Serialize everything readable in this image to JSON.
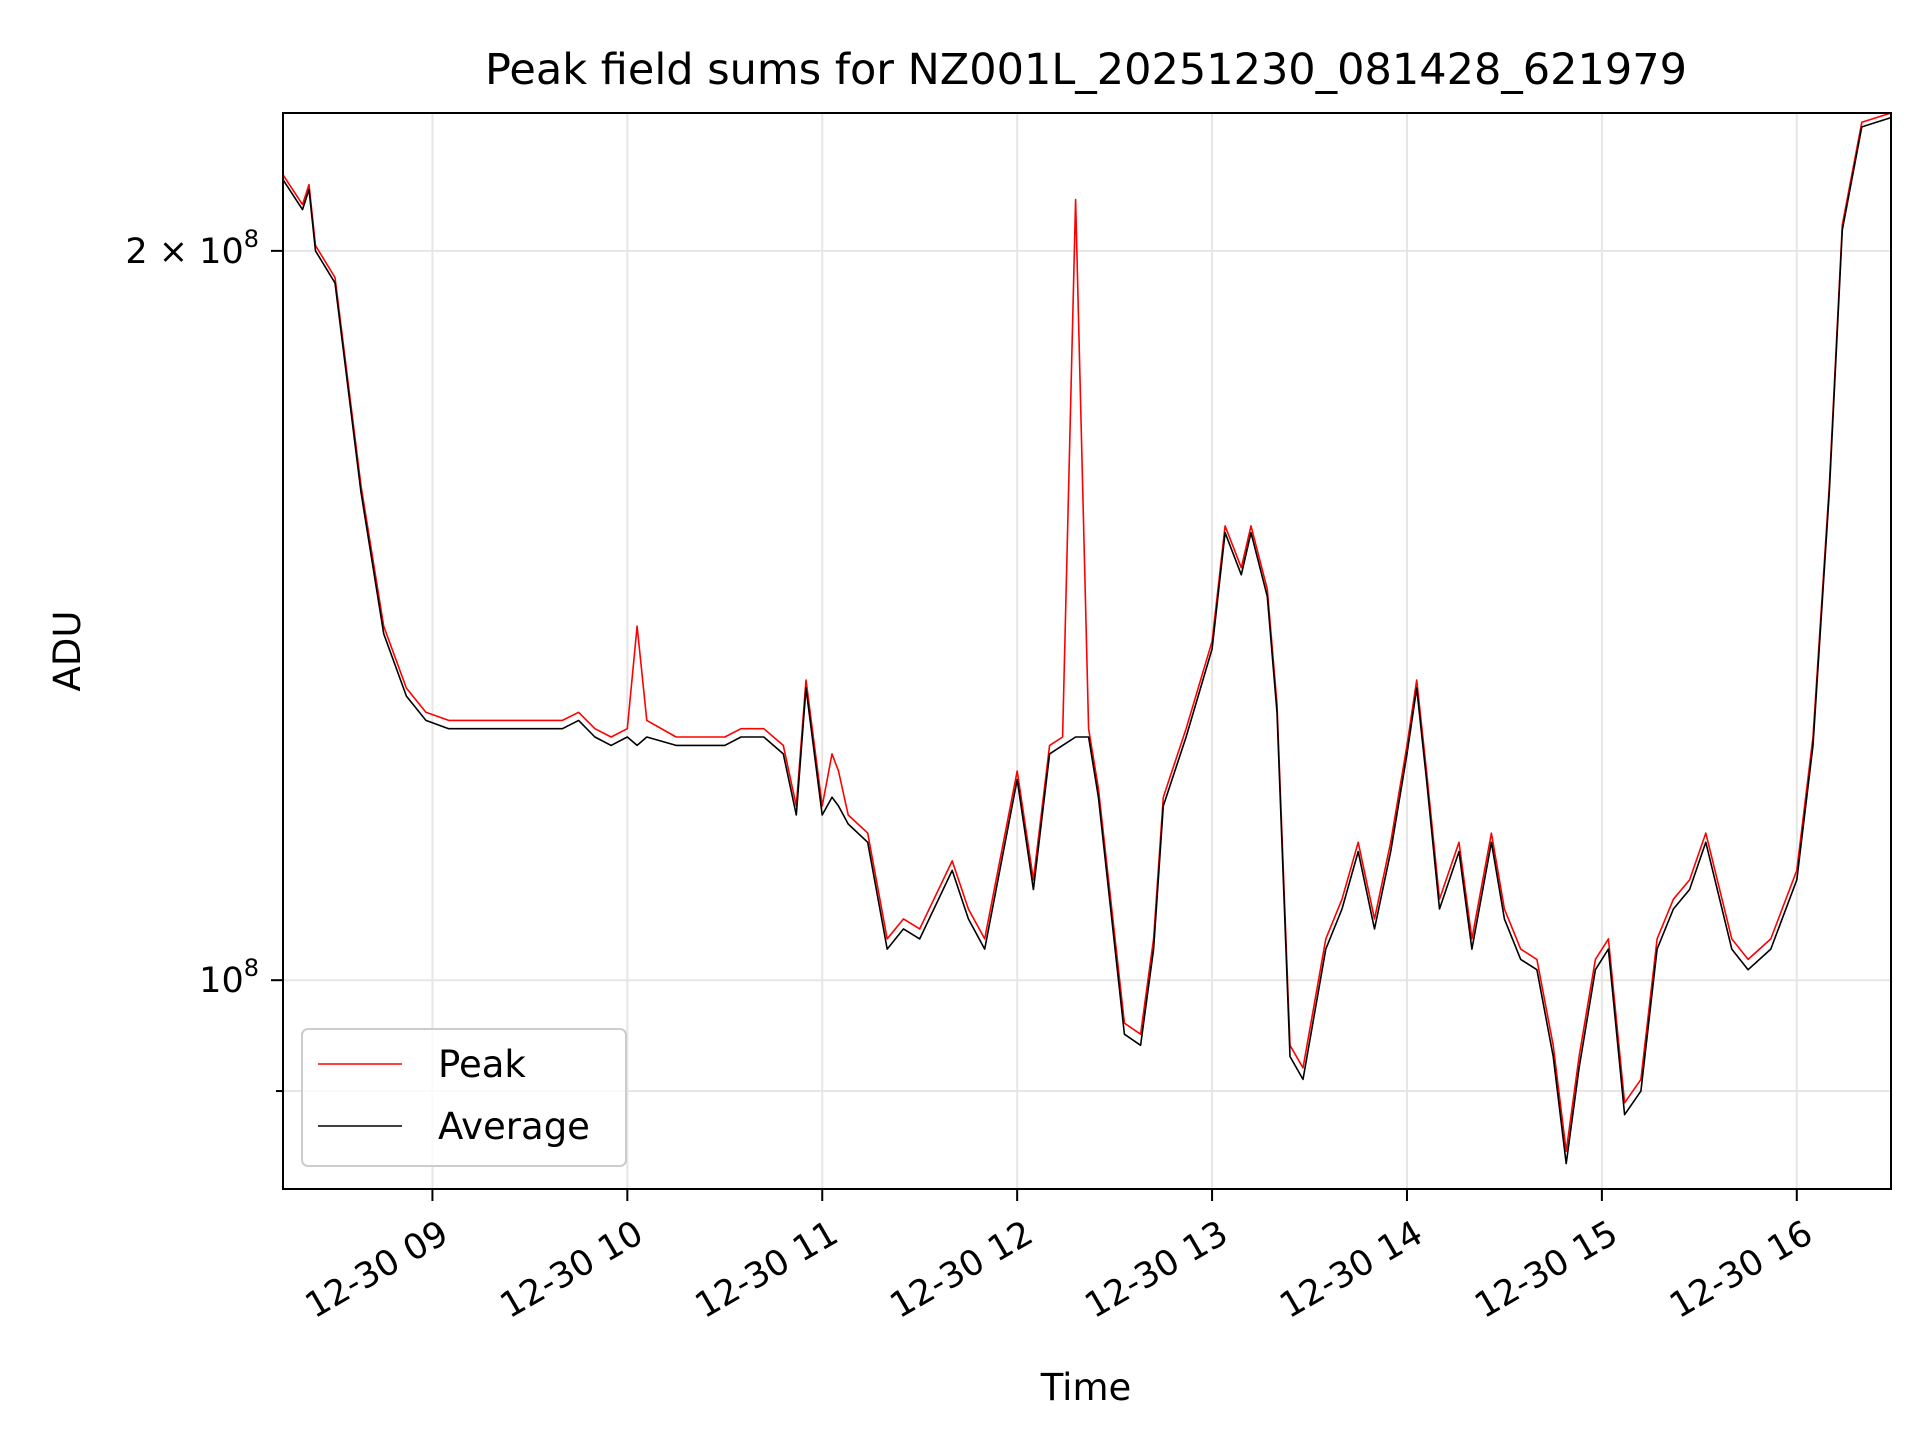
{
  "chart_data": {
    "type": "line",
    "title": "Peak field sums for NZ001L_20251230_081428_621979",
    "xlabel": "Time",
    "ylabel": "ADU",
    "yscale": "log",
    "ylim": [
      82000000,
      228000000
    ],
    "xlim": [
      "2025-12-30 08:14",
      "2025-12-30 16:29"
    ],
    "grid": true,
    "legend_position": "lower-left",
    "x_ticks": [
      {
        "t": "2025-12-30 09:00",
        "label": "12-30 09"
      },
      {
        "t": "2025-12-30 10:00",
        "label": "12-30 10"
      },
      {
        "t": "2025-12-30 11:00",
        "label": "12-30 11"
      },
      {
        "t": "2025-12-30 12:00",
        "label": "12-30 12"
      },
      {
        "t": "2025-12-30 13:00",
        "label": "12-30 13"
      },
      {
        "t": "2025-12-30 14:00",
        "label": "12-30 14"
      },
      {
        "t": "2025-12-30 15:00",
        "label": "12-30 15"
      },
      {
        "t": "2025-12-30 16:00",
        "label": "12-30 16"
      }
    ],
    "y_ticks": [
      {
        "value": 200000000,
        "label": "2 × 10",
        "exp": "8"
      },
      {
        "value": 100000000,
        "label": "10",
        "exp": "8"
      }
    ],
    "series": [
      {
        "name": "Peak",
        "color": "#ff0000",
        "x": [
          "2025-12-30 08:14",
          "2025-12-30 08:20",
          "2025-12-30 08:22",
          "2025-12-30 08:24",
          "2025-12-30 08:30",
          "2025-12-30 08:38",
          "2025-12-30 08:45",
          "2025-12-30 08:52",
          "2025-12-30 08:58",
          "2025-12-30 09:05",
          "2025-12-30 09:15",
          "2025-12-30 09:25",
          "2025-12-30 09:30",
          "2025-12-30 09:35",
          "2025-12-30 09:40",
          "2025-12-30 09:45",
          "2025-12-30 09:50",
          "2025-12-30 09:55",
          "2025-12-30 10:00",
          "2025-12-30 10:03",
          "2025-12-30 10:06",
          "2025-12-30 10:15",
          "2025-12-30 10:20",
          "2025-12-30 10:30",
          "2025-12-30 10:35",
          "2025-12-30 10:42",
          "2025-12-30 10:48",
          "2025-12-30 10:52",
          "2025-12-30 10:55",
          "2025-12-30 11:00",
          "2025-12-30 11:03",
          "2025-12-30 11:05",
          "2025-12-30 11:08",
          "2025-12-30 11:14",
          "2025-12-30 11:20",
          "2025-12-30 11:25",
          "2025-12-30 11:30",
          "2025-12-30 11:40",
          "2025-12-30 11:45",
          "2025-12-30 11:50",
          "2025-12-30 12:00",
          "2025-12-30 12:05",
          "2025-12-30 12:10",
          "2025-12-30 12:14",
          "2025-12-30 12:18",
          "2025-12-30 12:22",
          "2025-12-30 12:25",
          "2025-12-30 12:33",
          "2025-12-30 12:38",
          "2025-12-30 12:42",
          "2025-12-30 12:45",
          "2025-12-30 12:52",
          "2025-12-30 13:00",
          "2025-12-30 13:04",
          "2025-12-30 13:09",
          "2025-12-30 13:12",
          "2025-12-30 13:17",
          "2025-12-30 13:20",
          "2025-12-30 13:24",
          "2025-12-30 13:28",
          "2025-12-30 13:35",
          "2025-12-30 13:40",
          "2025-12-30 13:45",
          "2025-12-30 13:50",
          "2025-12-30 13:55",
          "2025-12-30 14:00",
          "2025-12-30 14:03",
          "2025-12-30 14:06",
          "2025-12-30 14:10",
          "2025-12-30 14:16",
          "2025-12-30 14:20",
          "2025-12-30 14:26",
          "2025-12-30 14:30",
          "2025-12-30 14:35",
          "2025-12-30 14:40",
          "2025-12-30 14:45",
          "2025-12-30 14:49",
          "2025-12-30 14:53",
          "2025-12-30 14:58",
          "2025-12-30 15:02",
          "2025-12-30 15:07",
          "2025-12-30 15:12",
          "2025-12-30 15:17",
          "2025-12-30 15:22",
          "2025-12-30 15:27",
          "2025-12-30 15:32",
          "2025-12-30 15:40",
          "2025-12-30 15:45",
          "2025-12-30 15:52",
          "2025-12-30 16:00",
          "2025-12-30 16:05",
          "2025-12-30 16:10",
          "2025-12-30 16:14",
          "2025-12-30 16:20",
          "2025-12-30 16:29"
        ],
        "y": [
          215000000,
          209000000,
          213000000,
          201000000,
          195000000,
          160000000,
          140000000,
          132000000,
          129000000,
          128000000,
          128000000,
          128000000,
          128000000,
          128000000,
          128000000,
          129000000,
          127000000,
          126000000,
          127000000,
          140000000,
          128000000,
          126000000,
          126000000,
          126000000,
          127000000,
          127000000,
          125000000,
          118000000,
          133000000,
          118000000,
          124000000,
          122000000,
          117000000,
          115000000,
          104000000,
          106000000,
          105000000,
          112000000,
          107000000,
          104000000,
          122000000,
          110000000,
          125000000,
          126000000,
          210000000,
          127000000,
          120000000,
          96000000,
          95000000,
          104000000,
          119000000,
          127000000,
          138000000,
          154000000,
          148000000,
          154000000,
          145000000,
          130000000,
          94000000,
          92000000,
          104000000,
          108000000,
          114000000,
          106000000,
          114000000,
          125000000,
          133000000,
          122000000,
          108000000,
          114000000,
          104000000,
          115000000,
          107000000,
          103000000,
          102000000,
          94000000,
          85000000,
          93000000,
          102000000,
          104000000,
          89000000,
          91000000,
          104000000,
          108000000,
          110000000,
          115000000,
          104000000,
          102000000,
          104000000,
          111000000,
          126000000,
          160000000,
          205000000,
          226000000,
          228000000
        ]
      },
      {
        "name": "Average",
        "color": "#000000",
        "x": [
          "2025-12-30 08:14",
          "2025-12-30 08:20",
          "2025-12-30 08:22",
          "2025-12-30 08:24",
          "2025-12-30 08:30",
          "2025-12-30 08:38",
          "2025-12-30 08:45",
          "2025-12-30 08:52",
          "2025-12-30 08:58",
          "2025-12-30 09:05",
          "2025-12-30 09:15",
          "2025-12-30 09:25",
          "2025-12-30 09:30",
          "2025-12-30 09:35",
          "2025-12-30 09:40",
          "2025-12-30 09:45",
          "2025-12-30 09:50",
          "2025-12-30 09:55",
          "2025-12-30 10:00",
          "2025-12-30 10:03",
          "2025-12-30 10:06",
          "2025-12-30 10:15",
          "2025-12-30 10:20",
          "2025-12-30 10:30",
          "2025-12-30 10:35",
          "2025-12-30 10:42",
          "2025-12-30 10:48",
          "2025-12-30 10:52",
          "2025-12-30 10:55",
          "2025-12-30 11:00",
          "2025-12-30 11:03",
          "2025-12-30 11:05",
          "2025-12-30 11:08",
          "2025-12-30 11:14",
          "2025-12-30 11:20",
          "2025-12-30 11:25",
          "2025-12-30 11:30",
          "2025-12-30 11:40",
          "2025-12-30 11:45",
          "2025-12-30 11:50",
          "2025-12-30 12:00",
          "2025-12-30 12:05",
          "2025-12-30 12:10",
          "2025-12-30 12:14",
          "2025-12-30 12:18",
          "2025-12-30 12:22",
          "2025-12-30 12:25",
          "2025-12-30 12:33",
          "2025-12-30 12:38",
          "2025-12-30 12:42",
          "2025-12-30 12:45",
          "2025-12-30 12:52",
          "2025-12-30 13:00",
          "2025-12-30 13:04",
          "2025-12-30 13:09",
          "2025-12-30 13:12",
          "2025-12-30 13:17",
          "2025-12-30 13:20",
          "2025-12-30 13:24",
          "2025-12-30 13:28",
          "2025-12-30 13:35",
          "2025-12-30 13:40",
          "2025-12-30 13:45",
          "2025-12-30 13:50",
          "2025-12-30 13:55",
          "2025-12-30 14:00",
          "2025-12-30 14:03",
          "2025-12-30 14:06",
          "2025-12-30 14:10",
          "2025-12-30 14:16",
          "2025-12-30 14:20",
          "2025-12-30 14:26",
          "2025-12-30 14:30",
          "2025-12-30 14:35",
          "2025-12-30 14:40",
          "2025-12-30 14:45",
          "2025-12-30 14:49",
          "2025-12-30 14:53",
          "2025-12-30 14:58",
          "2025-12-30 15:02",
          "2025-12-30 15:07",
          "2025-12-30 15:12",
          "2025-12-30 15:17",
          "2025-12-30 15:22",
          "2025-12-30 15:27",
          "2025-12-30 15:32",
          "2025-12-30 15:40",
          "2025-12-30 15:45",
          "2025-12-30 15:52",
          "2025-12-30 16:00",
          "2025-12-30 16:05",
          "2025-12-30 16:10",
          "2025-12-30 16:14",
          "2025-12-30 16:20",
          "2025-12-30 16:29"
        ],
        "y": [
          214000000,
          208000000,
          212000000,
          200000000,
          194000000,
          159000000,
          139000000,
          131000000,
          128000000,
          127000000,
          127000000,
          127000000,
          127000000,
          127000000,
          127000000,
          128000000,
          126000000,
          125000000,
          126000000,
          125000000,
          126000000,
          125000000,
          125000000,
          125000000,
          126000000,
          126000000,
          124000000,
          117000000,
          132000000,
          117000000,
          119000000,
          118000000,
          116000000,
          114000000,
          103000000,
          105000000,
          104000000,
          111000000,
          106000000,
          103000000,
          121000000,
          109000000,
          124000000,
          125000000,
          126000000,
          126000000,
          119000000,
          95000000,
          94000000,
          103000000,
          118000000,
          126000000,
          137000000,
          153000000,
          147000000,
          153000000,
          144000000,
          129000000,
          93000000,
          91000000,
          103000000,
          107000000,
          113000000,
          105000000,
          113000000,
          124000000,
          132000000,
          121000000,
          107000000,
          113000000,
          103000000,
          114000000,
          106000000,
          102000000,
          101000000,
          93000000,
          84000000,
          92000000,
          101000000,
          103000000,
          88000000,
          90000000,
          103000000,
          107000000,
          109000000,
          114000000,
          103000000,
          101000000,
          103000000,
          110000000,
          125000000,
          159000000,
          204000000,
          225000000,
          227000000
        ]
      }
    ]
  }
}
